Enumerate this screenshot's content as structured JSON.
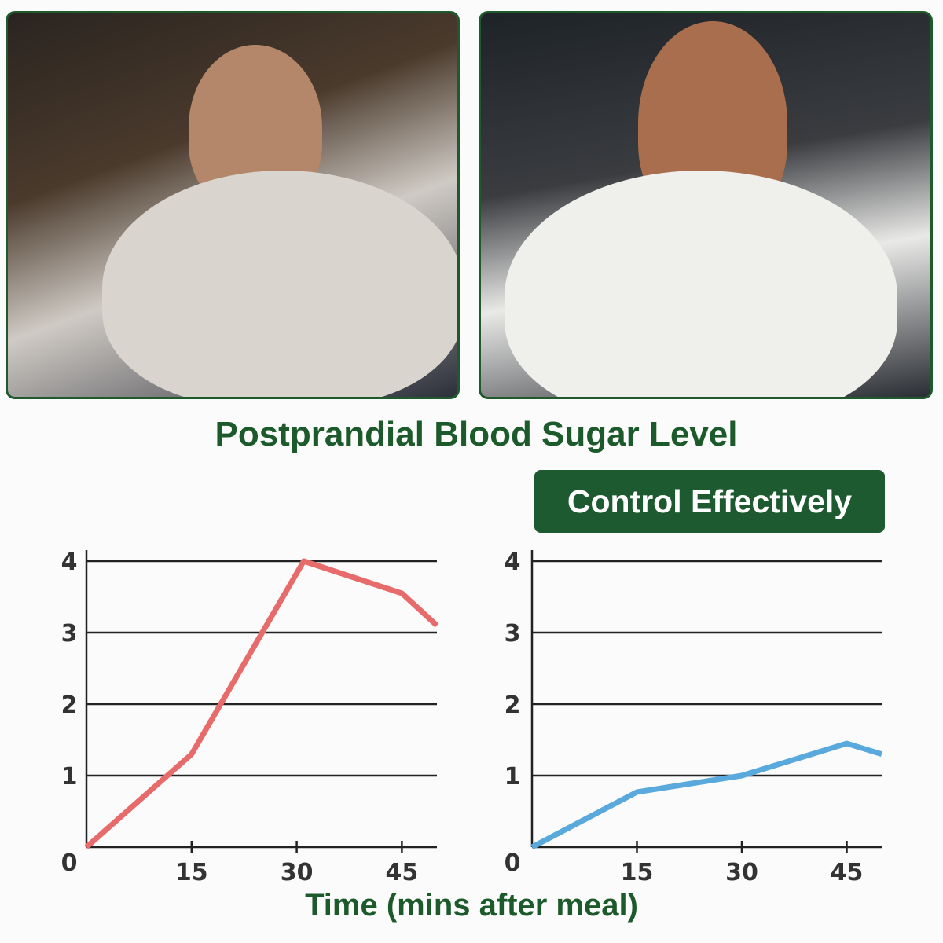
{
  "title": "Postprandial Blood Sugar Level",
  "badge": "Control Effectively",
  "xlabel": "Time (mins after meal)",
  "colors": {
    "brand_green": "#1d5a2f",
    "left_line": "#e86b6b",
    "right_line": "#5aa9dc",
    "grid": "#222222"
  },
  "chart_data": [
    {
      "type": "line",
      "xlabel": "Time (mins after meal)",
      "ylabel": "",
      "xlim": [
        0,
        50
      ],
      "ylim": [
        0,
        4
      ],
      "xticks": [
        "15",
        "30",
        "45"
      ],
      "xtick_values": [
        15,
        30,
        45
      ],
      "yticks": [
        "0",
        "1",
        "2",
        "3",
        "4"
      ],
      "grid": true,
      "series": [
        {
          "x": [
            0,
            15,
            31,
            45,
            50
          ],
          "y": [
            0,
            1.3,
            4.0,
            3.55,
            3.1
          ],
          "color": "#e86b6b"
        }
      ]
    },
    {
      "type": "line",
      "title": "Control Effectively",
      "xlabel": "Time (mins after meal)",
      "ylabel": "",
      "xlim": [
        0,
        50
      ],
      "ylim": [
        0,
        4
      ],
      "xticks": [
        "15",
        "30",
        "45"
      ],
      "xtick_values": [
        15,
        30,
        45
      ],
      "yticks": [
        "0",
        "1",
        "2",
        "3",
        "4"
      ],
      "grid": true,
      "series": [
        {
          "x": [
            0,
            15,
            30,
            45,
            50
          ],
          "y": [
            0,
            0.77,
            1.0,
            1.45,
            1.3
          ],
          "color": "#5aa9dc"
        }
      ]
    }
  ]
}
